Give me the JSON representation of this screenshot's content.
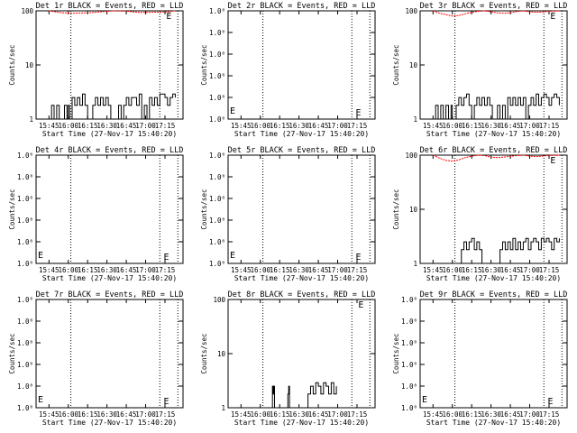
{
  "colors": {
    "background": "#ffffff",
    "events": "#000000",
    "lld": "#ff0000"
  },
  "common": {
    "xlabel": "Start Time (27-Nov-17 15:40:20)",
    "ylabel": "Counts/sec",
    "xticks": [
      "15:45",
      "16:00",
      "16:15",
      "16:30",
      "16:45",
      "17:00",
      "17:15"
    ],
    "marker": "E"
  },
  "chart_data": [
    {
      "type": "line",
      "title": "Det 1r BLACK = Events, RED = LLD",
      "yscale": "log",
      "ylim": [
        1,
        100
      ],
      "yticks": [
        "1",
        "10",
        "100"
      ],
      "events": [
        [
          15.0,
          1
        ],
        [
          15.1,
          1.8
        ],
        [
          15.2,
          1
        ],
        [
          15.3,
          1.8
        ],
        [
          15.4,
          1
        ],
        [
          15.5,
          1
        ],
        [
          15.6,
          1.8
        ],
        [
          15.7,
          1
        ],
        [
          15.75,
          1.8
        ],
        [
          15.8,
          1
        ],
        [
          15.9,
          2.5
        ],
        [
          16.0,
          1.8
        ],
        [
          16.1,
          2.5
        ],
        [
          16.2,
          1.8
        ],
        [
          16.3,
          2.9
        ],
        [
          16.4,
          1.8
        ],
        [
          16.5,
          1
        ],
        [
          16.6,
          1
        ],
        [
          16.7,
          1.8
        ],
        [
          16.8,
          2.5
        ],
        [
          16.9,
          1.8
        ],
        [
          17.0,
          2.5
        ],
        [
          17.1,
          1.8
        ],
        [
          17.2,
          2.5
        ],
        [
          17.3,
          1.8
        ],
        [
          17.4,
          1
        ],
        [
          17.5,
          1
        ],
        [
          17.6,
          1
        ],
        [
          17.7,
          1.8
        ],
        [
          17.8,
          1
        ],
        [
          17.9,
          1.8
        ],
        [
          18.0,
          2.5
        ],
        [
          18.1,
          1.8
        ],
        [
          18.2,
          2.5
        ],
        [
          18.3,
          2.5
        ],
        [
          18.4,
          1.8
        ],
        [
          18.5,
          2.9
        ],
        [
          18.6,
          1
        ],
        [
          18.7,
          1.8
        ],
        [
          18.8,
          1
        ],
        [
          18.9,
          2.5
        ],
        [
          19.0,
          1.8
        ],
        [
          19.1,
          2.5
        ],
        [
          19.2,
          1.8
        ],
        [
          19.3,
          2.9
        ],
        [
          19.4,
          2.9
        ],
        [
          19.5,
          2.5
        ],
        [
          19.6,
          1.8
        ],
        [
          19.7,
          2.5
        ],
        [
          19.8,
          2.9
        ],
        [
          19.9,
          2.5
        ]
      ],
      "lld": [
        [
          15.0,
          100
        ],
        [
          15.5,
          92
        ],
        [
          16.0,
          90
        ],
        [
          16.5,
          92
        ],
        [
          17.0,
          96
        ],
        [
          17.5,
          100
        ],
        [
          18.0,
          99
        ],
        [
          18.5,
          93
        ],
        [
          19.0,
          94
        ],
        [
          19.5,
          95
        ],
        [
          19.9,
          100
        ]
      ]
    },
    {
      "type": "line",
      "title": "Det 2r BLACK = Events, RED = LLD",
      "yscale": "log",
      "ylim": [
        0.9,
        1.000001
      ],
      "yticks": [
        "1.0⁰",
        "1.0⁰",
        "1.0⁰",
        "1.0⁰",
        "1.0⁰",
        "1.0⁰"
      ],
      "events": [],
      "lld": []
    },
    {
      "type": "line",
      "title": "Det 3r BLACK = Events, RED = LLD",
      "yscale": "log",
      "ylim": [
        1,
        100
      ],
      "yticks": [
        "1",
        "10",
        "100"
      ],
      "events": [
        [
          15.0,
          1
        ],
        [
          15.1,
          1.8
        ],
        [
          15.2,
          1
        ],
        [
          15.3,
          1.8
        ],
        [
          15.4,
          1
        ],
        [
          15.5,
          1.8
        ],
        [
          15.6,
          1
        ],
        [
          15.7,
          1.8
        ],
        [
          15.75,
          1
        ],
        [
          15.8,
          1
        ],
        [
          15.9,
          1.8
        ],
        [
          16.0,
          2.5
        ],
        [
          16.1,
          1.8
        ],
        [
          16.2,
          2.5
        ],
        [
          16.3,
          2.9
        ],
        [
          16.4,
          1.8
        ],
        [
          16.5,
          1
        ],
        [
          16.6,
          1.8
        ],
        [
          16.7,
          2.5
        ],
        [
          16.8,
          1.8
        ],
        [
          16.9,
          2.5
        ],
        [
          17.0,
          1.8
        ],
        [
          17.1,
          2.5
        ],
        [
          17.2,
          1.8
        ],
        [
          17.3,
          1
        ],
        [
          17.4,
          1
        ],
        [
          17.5,
          1.8
        ],
        [
          17.6,
          1
        ],
        [
          17.7,
          1.8
        ],
        [
          17.8,
          1
        ],
        [
          17.9,
          2.5
        ],
        [
          18.0,
          1.8
        ],
        [
          18.1,
          2.5
        ],
        [
          18.2,
          1.8
        ],
        [
          18.3,
          2.5
        ],
        [
          18.4,
          1.8
        ],
        [
          18.5,
          2.5
        ],
        [
          18.6,
          1
        ],
        [
          18.7,
          1.8
        ],
        [
          18.8,
          2.5
        ],
        [
          18.9,
          1.8
        ],
        [
          19.0,
          2.9
        ],
        [
          19.1,
          1.8
        ],
        [
          19.2,
          2.5
        ],
        [
          19.3,
          2.9
        ],
        [
          19.4,
          2.5
        ],
        [
          19.5,
          1.8
        ],
        [
          19.6,
          2.5
        ],
        [
          19.7,
          2.9
        ],
        [
          19.8,
          2.5
        ],
        [
          19.9,
          1.8
        ]
      ],
      "lld": [
        [
          15.0,
          100
        ],
        [
          15.25,
          90
        ],
        [
          15.5,
          85
        ],
        [
          15.75,
          80
        ],
        [
          16.0,
          82
        ],
        [
          16.25,
          88
        ],
        [
          16.5,
          94
        ],
        [
          16.75,
          98
        ],
        [
          17.0,
          100
        ],
        [
          17.25,
          96
        ],
        [
          17.5,
          92
        ],
        [
          17.75,
          90
        ],
        [
          18.0,
          92
        ],
        [
          18.25,
          97
        ],
        [
          18.5,
          100
        ],
        [
          18.75,
          96
        ],
        [
          19.0,
          94
        ],
        [
          19.25,
          95
        ],
        [
          19.5,
          98
        ],
        [
          19.9,
          100
        ]
      ]
    },
    {
      "type": "line",
      "title": "Det 4r BLACK = Events, RED = LLD",
      "yscale": "log",
      "ylim": [
        0.9,
        1.000001
      ],
      "yticks": [
        "1.0⁰",
        "1.0⁰",
        "1.0⁰",
        "1.0⁰",
        "1.0⁰",
        "1.0⁰"
      ],
      "events": [],
      "lld": []
    },
    {
      "type": "line",
      "title": "Det 5r BLACK = Events, RED = LLD",
      "yscale": "log",
      "ylim": [
        0.9,
        1.000001
      ],
      "yticks": [
        "1.0⁰",
        "1.0⁰",
        "1.0⁰",
        "1.0⁰",
        "1.0⁰",
        "1.0⁰"
      ],
      "events": [],
      "lld": []
    },
    {
      "type": "line",
      "title": "Det 6r BLACK = Events, RED = LLD",
      "yscale": "log",
      "ylim": [
        1,
        100
      ],
      "yticks": [
        "1",
        "10",
        "100"
      ],
      "events": [
        [
          15.0,
          1
        ],
        [
          16.0,
          1
        ],
        [
          16.1,
          1.8
        ],
        [
          16.2,
          2.5
        ],
        [
          16.3,
          1.8
        ],
        [
          16.4,
          2.5
        ],
        [
          16.5,
          2.9
        ],
        [
          16.6,
          1.8
        ],
        [
          16.7,
          2.5
        ],
        [
          16.8,
          1.8
        ],
        [
          16.9,
          1
        ],
        [
          17.0,
          1
        ],
        [
          17.5,
          1
        ],
        [
          17.6,
          1.8
        ],
        [
          17.7,
          2.5
        ],
        [
          17.8,
          1.8
        ],
        [
          17.9,
          2.5
        ],
        [
          18.0,
          1.8
        ],
        [
          18.1,
          2.9
        ],
        [
          18.2,
          1.8
        ],
        [
          18.3,
          2.5
        ],
        [
          18.4,
          1.8
        ],
        [
          18.5,
          2.5
        ],
        [
          18.6,
          2.9
        ],
        [
          18.7,
          1.8
        ],
        [
          18.8,
          2.5
        ],
        [
          18.9,
          2.9
        ],
        [
          19.0,
          2.5
        ],
        [
          19.1,
          1.8
        ],
        [
          19.2,
          2.9
        ],
        [
          19.3,
          2.5
        ],
        [
          19.4,
          2.9
        ],
        [
          19.5,
          2.5
        ],
        [
          19.6,
          1.8
        ],
        [
          19.7,
          2.9
        ],
        [
          19.8,
          2.5
        ],
        [
          19.9,
          2.9
        ]
      ],
      "lld": [
        [
          15.0,
          100
        ],
        [
          15.25,
          88
        ],
        [
          15.5,
          80
        ],
        [
          15.75,
          78
        ],
        [
          16.0,
          82
        ],
        [
          16.25,
          90
        ],
        [
          16.5,
          96
        ],
        [
          16.75,
          100
        ],
        [
          17.0,
          98
        ],
        [
          17.25,
          92
        ],
        [
          17.5,
          90
        ],
        [
          17.75,
          92
        ],
        [
          18.0,
          95
        ],
        [
          18.25,
          98
        ],
        [
          18.5,
          100
        ],
        [
          18.75,
          96
        ],
        [
          19.0,
          94
        ],
        [
          19.25,
          96
        ],
        [
          19.5,
          99
        ],
        [
          19.9,
          100
        ]
      ]
    },
    {
      "type": "line",
      "title": "Det 7r BLACK = Events, RED = LLD",
      "yscale": "log",
      "ylim": [
        0.9,
        1.000001
      ],
      "yticks": [
        "1.0⁰",
        "1.0⁰",
        "1.0⁰",
        "1.0⁰",
        "1.0⁰",
        "1.0⁰"
      ],
      "events": [],
      "lld": []
    },
    {
      "type": "line",
      "title": "Det 8r BLACK = Events, RED = LLD",
      "yscale": "log",
      "ylim": [
        1,
        100
      ],
      "yticks": [
        "1",
        "10",
        "100"
      ],
      "events": [
        [
          16.0,
          1
        ],
        [
          16.2,
          1
        ],
        [
          16.22,
          2.5
        ],
        [
          16.25,
          1.8
        ],
        [
          16.27,
          2.5
        ],
        [
          16.3,
          1
        ],
        [
          16.8,
          1
        ],
        [
          16.82,
          1.8
        ],
        [
          16.85,
          2.5
        ],
        [
          16.88,
          1
        ],
        [
          17.5,
          1
        ],
        [
          17.6,
          1.8
        ],
        [
          17.7,
          2.5
        ],
        [
          17.8,
          1.8
        ],
        [
          17.9,
          2.9
        ],
        [
          18.0,
          2.5
        ],
        [
          18.1,
          1.8
        ],
        [
          18.2,
          2.9
        ],
        [
          18.3,
          2.5
        ],
        [
          18.4,
          1.8
        ],
        [
          18.5,
          2.9
        ],
        [
          18.6,
          1.8
        ],
        [
          18.7,
          2.5
        ]
      ],
      "lld": []
    },
    {
      "type": "line",
      "title": "Det 9r BLACK = Events, RED = LLD",
      "yscale": "log",
      "ylim": [
        0.9,
        1.000001
      ],
      "yticks": [
        "1.0⁰",
        "1.0⁰",
        "1.0⁰",
        "1.0⁰",
        "1.0⁰",
        "1.0⁰"
      ],
      "events": [],
      "lld": []
    }
  ]
}
